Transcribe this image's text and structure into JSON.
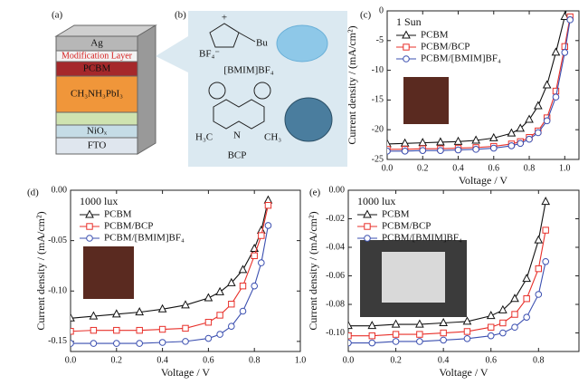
{
  "panel_a": {
    "label": "(a)",
    "layers": [
      "Ag",
      "Modification Layer",
      "PCBM",
      "CH₃NH₃PbI₃",
      "NiOₓ",
      "FTO"
    ]
  },
  "panel_b": {
    "label": "(b)",
    "ionic_liquid": "[BMIM]BF₄",
    "anion": "BF₄⁻",
    "butyl": "Bu",
    "charge": "+",
    "bcp": "BCP",
    "methyl_left": "H₃C",
    "methyl_right": "CH₃",
    "nitrogen": "N"
  },
  "chart_data": [
    {
      "type": "line",
      "panel_label": "(c)",
      "annotation": "1 Sun",
      "xlabel": "Voltage / V",
      "ylabel": "Current density / (mA/cm²)",
      "x": [
        0,
        0.1,
        0.2,
        0.3,
        0.4,
        0.5,
        0.6,
        0.7,
        0.75,
        0.8,
        0.85,
        0.9,
        0.95,
        1.0,
        1.03
      ],
      "series": [
        {
          "name": "PCBM",
          "color": "#111111",
          "marker": "triangle",
          "values": [
            -22.4,
            -22.3,
            -22.2,
            -22.1,
            -22.0,
            -21.8,
            -21.4,
            -20.6,
            -19.8,
            -18.3,
            -16.0,
            -12.5,
            -7.0,
            -1.0,
            3.0
          ]
        },
        {
          "name": "PCBM/BCP",
          "color": "#e8302a",
          "marker": "square",
          "values": [
            -23.3,
            -23.3,
            -23.2,
            -23.2,
            -23.1,
            -23.0,
            -22.8,
            -22.4,
            -22.0,
            -21.3,
            -20.2,
            -18.0,
            -13.5,
            -6.0,
            -1.0
          ]
        },
        {
          "name": "PCBM/[BMIM]BF₄",
          "color": "#3b4fb0",
          "marker": "circle",
          "values": [
            -23.6,
            -23.6,
            -23.5,
            -23.5,
            -23.4,
            -23.3,
            -23.1,
            -22.7,
            -22.3,
            -21.6,
            -20.5,
            -18.5,
            -14.5,
            -7.0,
            -1.5
          ]
        }
      ],
      "xlim": [
        0,
        1.08
      ],
      "ylim": [
        -25,
        0
      ],
      "xticks": [
        {
          "value": 0,
          "label": "0.0"
        },
        {
          "value": 0.2,
          "label": "0.2"
        },
        {
          "value": 0.4,
          "label": "0.4"
        },
        {
          "value": 0.6,
          "label": "0.6"
        },
        {
          "value": 0.8,
          "label": "0.8"
        },
        {
          "value": 1,
          "label": "1.0"
        }
      ],
      "yticks": [
        0,
        -5,
        -10,
        -15,
        -20,
        -25
      ],
      "legend": "upper left"
    },
    {
      "type": "line",
      "panel_label": "(d)",
      "annotation": "1000 lux",
      "xlabel": "Voltage / V",
      "ylabel": "Current density / (mA/cm²)",
      "x": [
        0,
        0.1,
        0.2,
        0.3,
        0.4,
        0.5,
        0.6,
        0.65,
        0.7,
        0.75,
        0.8,
        0.83,
        0.86
      ],
      "series": [
        {
          "name": "PCBM",
          "color": "#111111",
          "marker": "triangle",
          "values": [
            -0.127,
            -0.125,
            -0.123,
            -0.121,
            -0.118,
            -0.114,
            -0.107,
            -0.101,
            -0.092,
            -0.079,
            -0.058,
            -0.04,
            -0.01
          ]
        },
        {
          "name": "PCBM/BCP",
          "color": "#e8302a",
          "marker": "square",
          "values": [
            -0.14,
            -0.139,
            -0.139,
            -0.139,
            -0.138,
            -0.137,
            -0.131,
            -0.124,
            -0.113,
            -0.095,
            -0.065,
            -0.045,
            -0.015
          ]
        },
        {
          "name": "PCBM/[BMIM]BF₄",
          "color": "#3b4fb0",
          "marker": "circle",
          "values": [
            -0.152,
            -0.152,
            -0.152,
            -0.152,
            -0.151,
            -0.15,
            -0.147,
            -0.143,
            -0.135,
            -0.12,
            -0.095,
            -0.072,
            -0.035
          ]
        }
      ],
      "xlim": [
        0,
        1
      ],
      "ylim": [
        -0.16,
        0
      ],
      "xticks": [
        {
          "value": 0,
          "label": "0.0"
        },
        {
          "value": 0.2,
          "label": "0.2"
        },
        {
          "value": 0.4,
          "label": "0.4"
        },
        {
          "value": 0.6,
          "label": "0.6"
        },
        {
          "value": 0.8,
          "label": "0.8"
        },
        {
          "value": 1,
          "label": "1.0"
        }
      ],
      "yticks": [
        {
          "value": 0,
          "label": "0.00"
        },
        {
          "value": -0.05,
          "label": "-0.05"
        },
        {
          "value": -0.1,
          "label": "-0.10"
        },
        {
          "value": -0.15,
          "label": "-0.15"
        }
      ],
      "legend": "upper left"
    },
    {
      "type": "line",
      "panel_label": "(e)",
      "annotation": "1000 lux",
      "xlabel": "Voltage / V",
      "ylabel": "Current density / (mA/cm²)",
      "x": [
        0,
        0.1,
        0.2,
        0.3,
        0.4,
        0.5,
        0.6,
        0.65,
        0.7,
        0.75,
        0.8,
        0.83
      ],
      "series": [
        {
          "name": "PCBM",
          "color": "#111111",
          "marker": "triangle",
          "values": [
            -0.095,
            -0.095,
            -0.094,
            -0.094,
            -0.093,
            -0.092,
            -0.088,
            -0.084,
            -0.076,
            -0.062,
            -0.035,
            -0.008
          ]
        },
        {
          "name": "PCBM/BCP",
          "color": "#e8302a",
          "marker": "square",
          "values": [
            -0.102,
            -0.102,
            -0.101,
            -0.101,
            -0.1,
            -0.099,
            -0.096,
            -0.093,
            -0.087,
            -0.076,
            -0.055,
            -0.028
          ]
        },
        {
          "name": "PCBM/[BMIM]BF₄",
          "color": "#3b4fb0",
          "marker": "circle",
          "values": [
            -0.107,
            -0.107,
            -0.106,
            -0.106,
            -0.105,
            -0.104,
            -0.102,
            -0.1,
            -0.096,
            -0.089,
            -0.073,
            -0.05
          ]
        }
      ],
      "xlim": [
        0,
        0.97
      ],
      "ylim": [
        -0.113,
        0
      ],
      "xticks": [
        {
          "value": 0,
          "label": "0.0"
        },
        {
          "value": 0.2,
          "label": "0.2"
        },
        {
          "value": 0.4,
          "label": "0.4"
        },
        {
          "value": 0.6,
          "label": "0.6"
        },
        {
          "value": 0.8,
          "label": "0.8"
        }
      ],
      "yticks": [
        {
          "value": 0,
          "label": "0.00"
        },
        {
          "value": -0.02,
          "label": "-0.02"
        },
        {
          "value": -0.04,
          "label": "-0.04"
        },
        {
          "value": -0.06,
          "label": "-0.06"
        },
        {
          "value": -0.08,
          "label": "-0.08"
        },
        {
          "value": -0.1,
          "label": "-0.10"
        }
      ],
      "legend": "upper left"
    }
  ]
}
